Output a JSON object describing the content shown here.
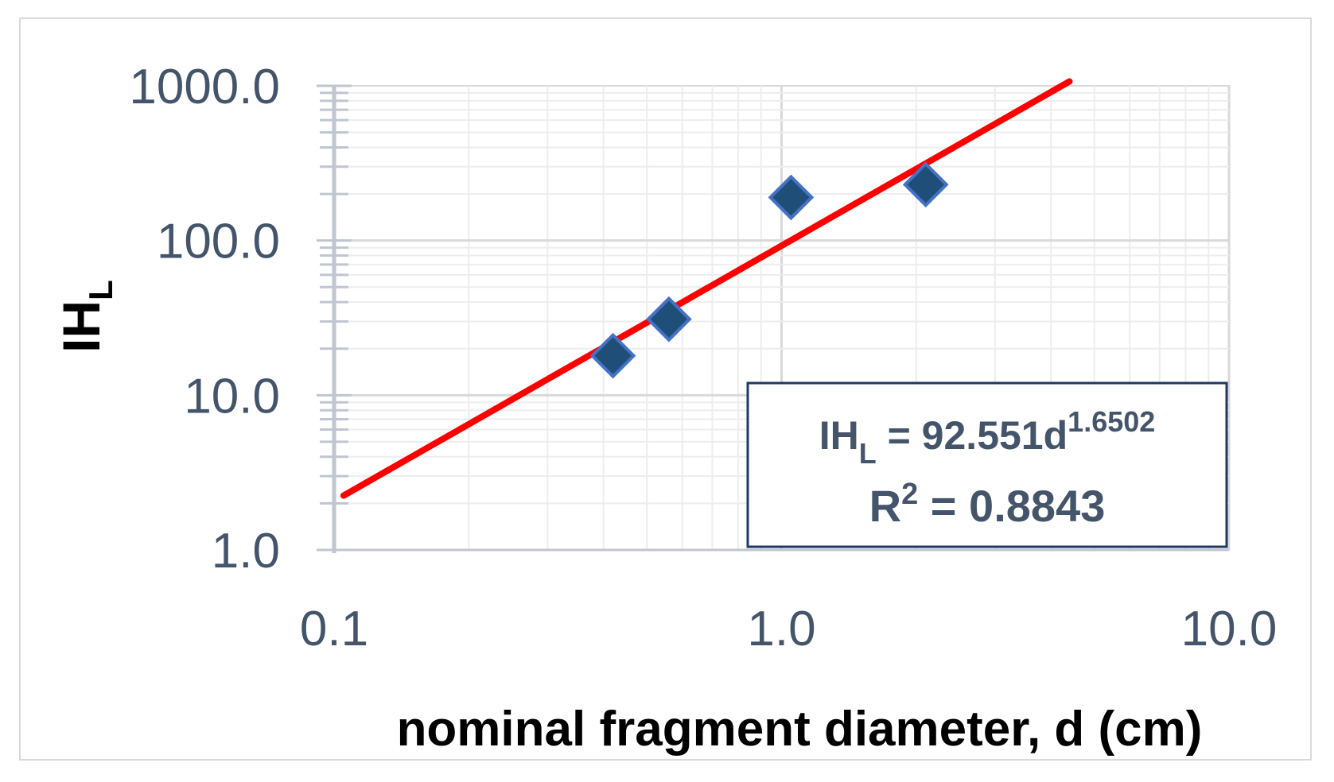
{
  "chart_data": {
    "type": "scatter",
    "xlabel": "nominal fragment diameter, d (cm)",
    "ylabel": {
      "main": "IH",
      "sub": "L"
    },
    "x_scale": "log",
    "y_scale": "log",
    "xlim": [
      0.1,
      10.0
    ],
    "ylim": [
      1.0,
      1000.0
    ],
    "x_ticks": [
      "0.1",
      "1.0",
      "10.0"
    ],
    "y_ticks": [
      "1.0",
      "10.0",
      "100.0",
      "1000.0"
    ],
    "grid": true,
    "series": [
      {
        "points": [
          {
            "x": 0.42,
            "y": 18
          },
          {
            "x": 0.56,
            "y": 31
          },
          {
            "x": 1.05,
            "y": 190
          },
          {
            "x": 2.1,
            "y": 230
          }
        ],
        "marker": "diamond",
        "color": "#1f4e79",
        "edge_color": "#4472c4"
      }
    ],
    "trendline": {
      "type": "power",
      "coefficient": 92.551,
      "exponent": 1.6502,
      "x_range": [
        0.105,
        4.4
      ],
      "color": "#ff0000"
    },
    "annotation": {
      "equation_main": "IH",
      "equation_sub": "L",
      "equation_rest": " = 92.551d",
      "equation_exp": "1.6502",
      "r2_label": "R",
      "r2_exp": "2",
      "r2_rest": " =  0.8843",
      "border_color": "#1f3864"
    },
    "colors": {
      "gridline": "#d9d9d9",
      "gridline_minor": "#ededed",
      "axis": "#bfc6d1",
      "tick_text": "#44546a"
    }
  }
}
